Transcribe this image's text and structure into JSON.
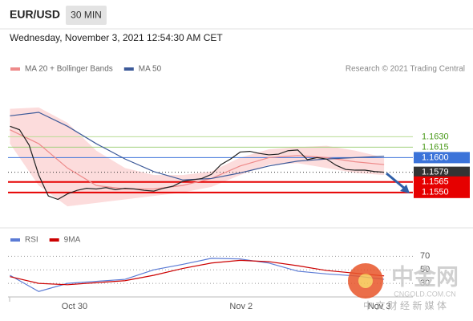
{
  "header": {
    "symbol": "EUR/USD",
    "timeframe": "30 MIN",
    "date": "Wednesday, November 3, 2021 12:54:30 AM CET",
    "credit": "Research © 2021 Trading Central",
    "watermark": "中金网",
    "watermark_url": "CNGOLD.COM.CN",
    "watermark_sub": "中 文 财 经 新 媒 体"
  },
  "chart_data": [
    {
      "type": "line",
      "legend": [
        {
          "name": "MA 20 + Bollinger Bands",
          "color": "#ee8a8a"
        },
        {
          "name": "MA 50",
          "color": "#3d5a99"
        }
      ],
      "xlim": [
        -0.2,
        42
      ],
      "ylim": [
        1.1521,
        1.1688
      ],
      "xticks": [
        {
          "value": 6.73,
          "label": "Oct 30"
        },
        {
          "value": 24.1,
          "label": "Nov 2"
        },
        {
          "value": 38.5,
          "label": "Nov 3"
        }
      ],
      "levels": [
        {
          "value": 1.163,
          "label": "1.1630",
          "color": "#b9dc94",
          "text_color": "#4a9a1a",
          "box": false,
          "dash": false
        },
        {
          "value": 1.1615,
          "label": "1.1615",
          "color": "#9fcf7a",
          "text_color": "#4a9a1a",
          "box": false,
          "dash": false
        },
        {
          "value": 1.16,
          "label": "1.1600",
          "color": "#3b73d9",
          "text_color": "#ffffff",
          "box": true,
          "dash": false
        },
        {
          "value": 1.1579,
          "label": "1.1579",
          "color": "#333333",
          "text_color": "#ffffff",
          "box": true,
          "dash": true
        },
        {
          "value": 1.1565,
          "label": "1.1565",
          "color": "#e60000",
          "text_color": "#ffffff",
          "box": true,
          "dash": false
        },
        {
          "value": 1.155,
          "label": "1.1550",
          "color": "#e60000",
          "text_color": "#ffffff",
          "box": true,
          "dash": false
        }
      ],
      "band": {
        "color": "#fcdcdc",
        "x": [
          0,
          3,
          6,
          9,
          12,
          15,
          18,
          21,
          24,
          27,
          30,
          33,
          36,
          39
        ],
        "upper": [
          1.167,
          1.1672,
          1.165,
          1.161,
          1.1585,
          1.1575,
          1.1575,
          1.158,
          1.16,
          1.1612,
          1.1615,
          1.1617,
          1.161,
          1.16
        ],
        "lower": [
          1.162,
          1.156,
          1.153,
          1.1535,
          1.154,
          1.1545,
          1.155,
          1.1558,
          1.1575,
          1.159,
          1.1592,
          1.1585,
          1.1578,
          1.1575
        ]
      },
      "series": [
        {
          "color": "#ee8a8a",
          "x": [
            0,
            3,
            6,
            9,
            12,
            15,
            18,
            21,
            24,
            27,
            30,
            33,
            36,
            39
          ],
          "values": [
            1.164,
            1.162,
            1.1585,
            1.156,
            1.1555,
            1.1555,
            1.156,
            1.157,
            1.1588,
            1.16,
            1.1603,
            1.16,
            1.1594,
            1.159
          ]
        },
        {
          "color": "#3d5a99",
          "x": [
            0,
            3,
            6,
            9,
            12,
            15,
            18,
            21,
            24,
            27,
            30,
            33,
            36,
            39
          ],
          "values": [
            1.166,
            1.1665,
            1.1645,
            1.162,
            1.1598,
            1.158,
            1.1568,
            1.157,
            1.1578,
            1.1588,
            1.1595,
            1.1598,
            1.16,
            1.1602
          ]
        },
        {
          "color": "#222222",
          "x": [
            0,
            1,
            2,
            3,
            4,
            5,
            6,
            7,
            8,
            9,
            10,
            11,
            12,
            13,
            14,
            15,
            16,
            17,
            18,
            19,
            20,
            21,
            22,
            23,
            24,
            25,
            26,
            27,
            28,
            29,
            30,
            31,
            32,
            33,
            34,
            35,
            36,
            37,
            38,
            39
          ],
          "values": [
            1.1645,
            1.164,
            1.1618,
            1.1575,
            1.1545,
            1.154,
            1.1548,
            1.1553,
            1.1556,
            1.1555,
            1.1557,
            1.1554,
            1.1556,
            1.1555,
            1.1553,
            1.1552,
            1.1556,
            1.1559,
            1.1566,
            1.1568,
            1.157,
            1.1576,
            1.159,
            1.1598,
            1.1608,
            1.1609,
            1.1606,
            1.1604,
            1.1605,
            1.161,
            1.1611,
            1.1597,
            1.16,
            1.1598,
            1.1589,
            1.1583,
            1.1582,
            1.1582,
            1.158,
            1.1579
          ]
        }
      ]
    },
    {
      "type": "line",
      "legend": [
        {
          "name": "RSI",
          "color": "#5b7bd5"
        },
        {
          "name": "9MA",
          "color": "#cc0000"
        }
      ],
      "xlim": [
        -0.2,
        42
      ],
      "ylim": [
        10,
        100
      ],
      "yticks": [
        70,
        50,
        30
      ],
      "series": [
        {
          "color": "#5b7bd5",
          "x": [
            0,
            3,
            6,
            9,
            12,
            15,
            18,
            21,
            24,
            27,
            30,
            33,
            36,
            39
          ],
          "values": [
            42,
            18,
            30,
            33,
            36,
            50,
            58,
            67,
            66,
            60,
            48,
            44,
            41,
            36
          ]
        },
        {
          "color": "#cc0000",
          "x": [
            0,
            3,
            6,
            9,
            12,
            15,
            18,
            21,
            24,
            27,
            30,
            33,
            36,
            39
          ],
          "values": [
            40,
            30,
            28,
            31,
            34,
            42,
            52,
            60,
            64,
            62,
            56,
            49,
            45,
            41
          ]
        }
      ]
    }
  ]
}
